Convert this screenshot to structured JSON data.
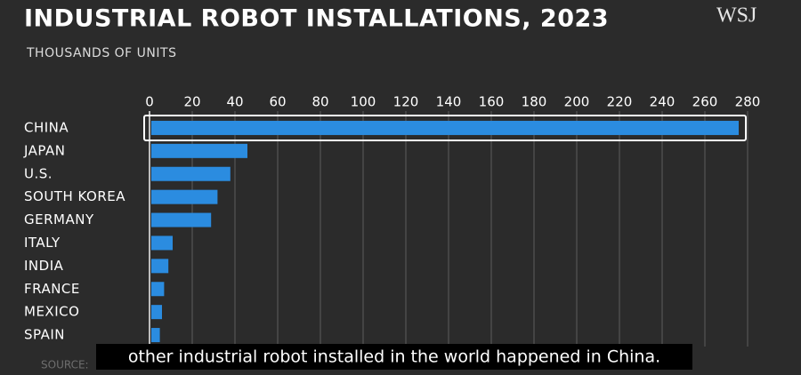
{
  "chart_data": {
    "type": "bar",
    "orientation": "horizontal",
    "title": "INDUSTRIAL ROBOT INSTALLATIONS, 2023",
    "subtitle": "THOUSANDS OF UNITS",
    "brand": "WSJ",
    "categories": [
      "CHINA",
      "JAPAN",
      "U.S.",
      "SOUTH KOREA",
      "GERMANY",
      "ITALY",
      "INDIA",
      "FRANCE",
      "MEXICO",
      "SPAIN"
    ],
    "values": [
      275,
      45,
      37,
      31,
      28,
      10,
      8,
      6,
      5,
      4
    ],
    "color": "#2b8ce0",
    "xlim": [
      0,
      280
    ],
    "xticks": [
      0,
      20,
      40,
      60,
      80,
      100,
      120,
      140,
      160,
      180,
      200,
      220,
      240,
      260,
      280
    ],
    "grid": true,
    "source": "SOURCE:",
    "caption": "other industrial robot installed in the world happened in China."
  }
}
